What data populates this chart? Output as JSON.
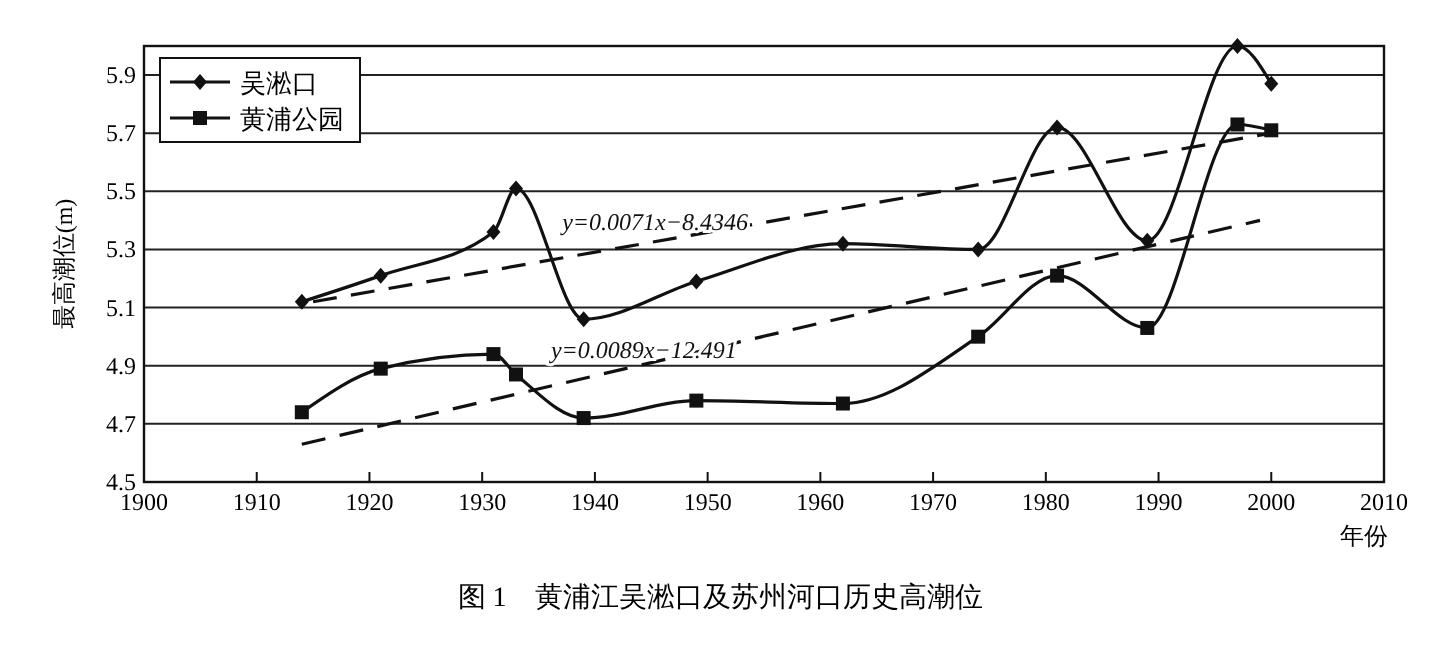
{
  "chart_data": {
    "type": "line",
    "title": "图 1　黄浦江吴淞口及苏州河口历史高潮位",
    "xlabel": "年份",
    "ylabel": "最高潮位(m)",
    "xlim": [
      1900,
      2010
    ],
    "xticks": [
      1900,
      1910,
      1920,
      1930,
      1940,
      1950,
      1960,
      1970,
      1980,
      1990,
      2000,
      2010
    ],
    "ylim": [
      4.5,
      6.0
    ],
    "yticks": [
      4.5,
      4.7,
      4.9,
      5.1,
      5.3,
      5.5,
      5.7,
      5.9
    ],
    "grid": "y",
    "legend": "top left",
    "series": [
      {
        "name": "吴淞口",
        "color": "#111111",
        "marker": "diamond",
        "x": [
          1914,
          1921,
          1931,
          1933,
          1939,
          1949,
          1962,
          1974,
          1981,
          1989,
          1997,
          2000
        ],
        "values": [
          5.12,
          5.21,
          5.36,
          5.51,
          5.06,
          5.19,
          5.32,
          5.3,
          5.72,
          5.33,
          6.0,
          5.87
        ]
      },
      {
        "name": "黄浦公园",
        "color": "#111111",
        "marker": "square",
        "x": [
          1914,
          1921,
          1931,
          1933,
          1939,
          1949,
          1962,
          1974,
          1981,
          1989,
          1997,
          2000
        ],
        "values": [
          4.74,
          4.89,
          4.94,
          4.87,
          4.72,
          4.78,
          4.77,
          5.0,
          5.21,
          5.03,
          5.73,
          5.71
        ]
      },
      {
        "type": "line",
        "name": "y=0.0071x−8.4346",
        "color": "#111111",
        "marker": "none",
        "line_style": "dashed",
        "x": [
          1915,
          2000
        ],
        "values": [
          5.12,
          5.7
        ]
      },
      {
        "type": "line",
        "name": "y=0.0089x−12.491",
        "color": "#111111",
        "marker": "none",
        "line_style": "dashed",
        "x": [
          1914,
          1999
        ],
        "values": [
          4.63,
          5.4
        ]
      }
    ]
  }
}
